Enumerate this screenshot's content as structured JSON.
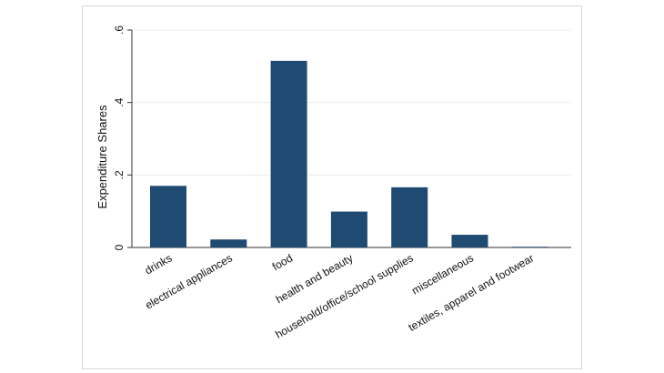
{
  "chart_data": {
    "type": "bar",
    "categories": [
      "drinks",
      "electrical appliances",
      "food",
      "health and beauty",
      "household/office/school supplies",
      "miscellaneous",
      "textiles, apparel and footwear"
    ],
    "values": [
      0.17,
      0.022,
      0.515,
      0.099,
      0.166,
      0.035,
      0.002
    ],
    "title": "",
    "xlabel": "",
    "ylabel": "Expenditure Shares",
    "ylim": [
      0,
      0.6
    ],
    "yticks": [
      0,
      0.2,
      0.4,
      0.6
    ],
    "ytick_labels": [
      "0",
      ".2",
      ".4",
      ".6"
    ],
    "grid": true,
    "bar_color": "#1f4a72"
  }
}
